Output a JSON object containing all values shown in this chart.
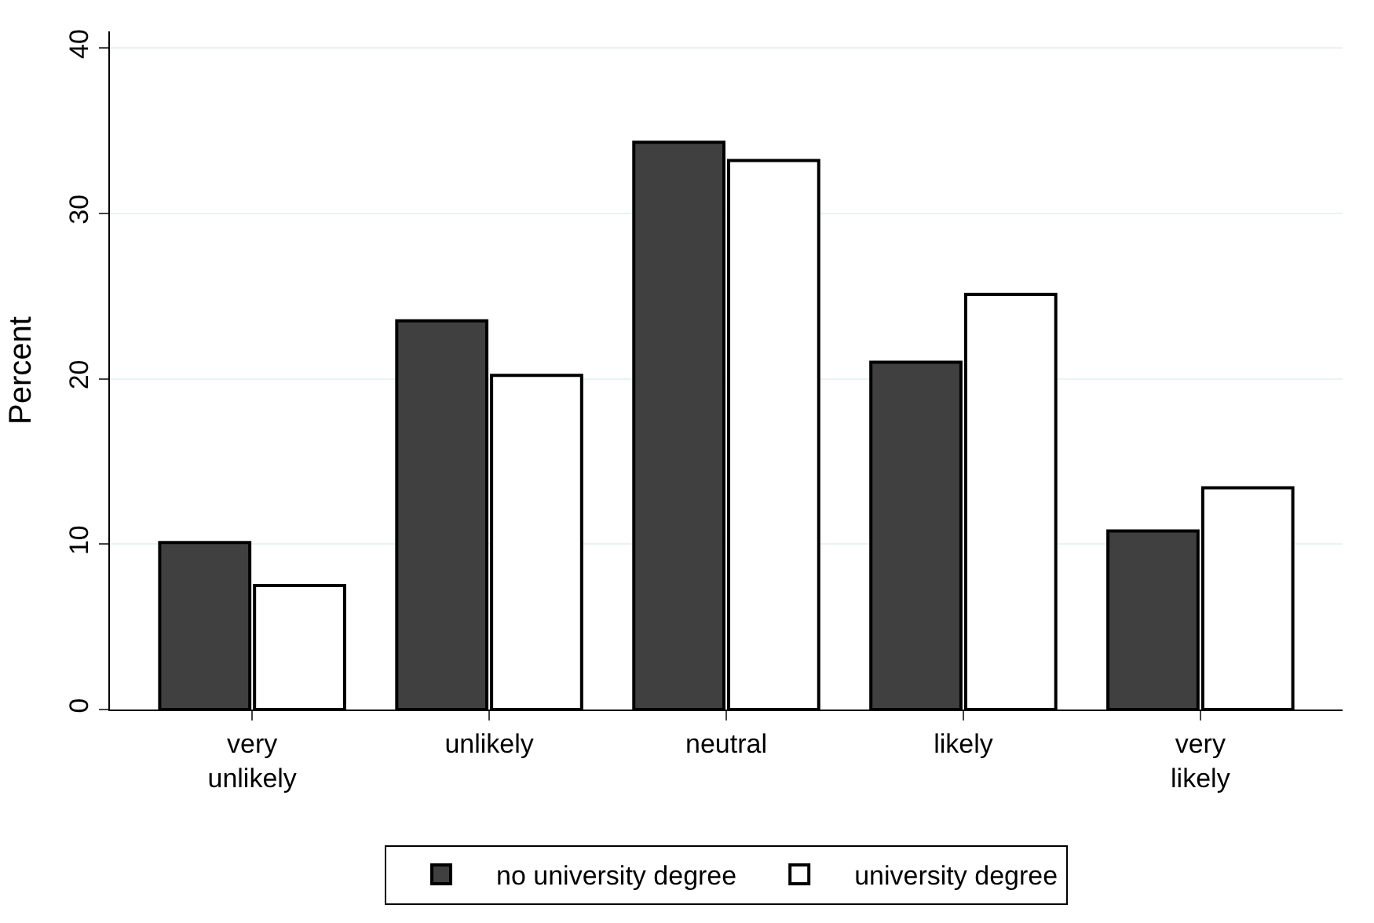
{
  "chart_data": {
    "type": "bar",
    "ylabel": "Percent",
    "categories": [
      "very unlikely",
      "unlikely",
      "neutral",
      "likely",
      "very likely"
    ],
    "series": [
      {
        "name": "no university degree",
        "color": "#404040",
        "values": [
          10.1,
          23.5,
          34.3,
          21.0,
          10.8
        ]
      },
      {
        "name": "university degree",
        "color": "#ffffff",
        "values": [
          7.5,
          20.2,
          33.2,
          25.1,
          13.4
        ]
      }
    ],
    "ylim": [
      0,
      41
    ],
    "yticks": [
      0,
      10,
      20,
      30,
      40
    ],
    "grid": "y",
    "legend": "bottom"
  }
}
